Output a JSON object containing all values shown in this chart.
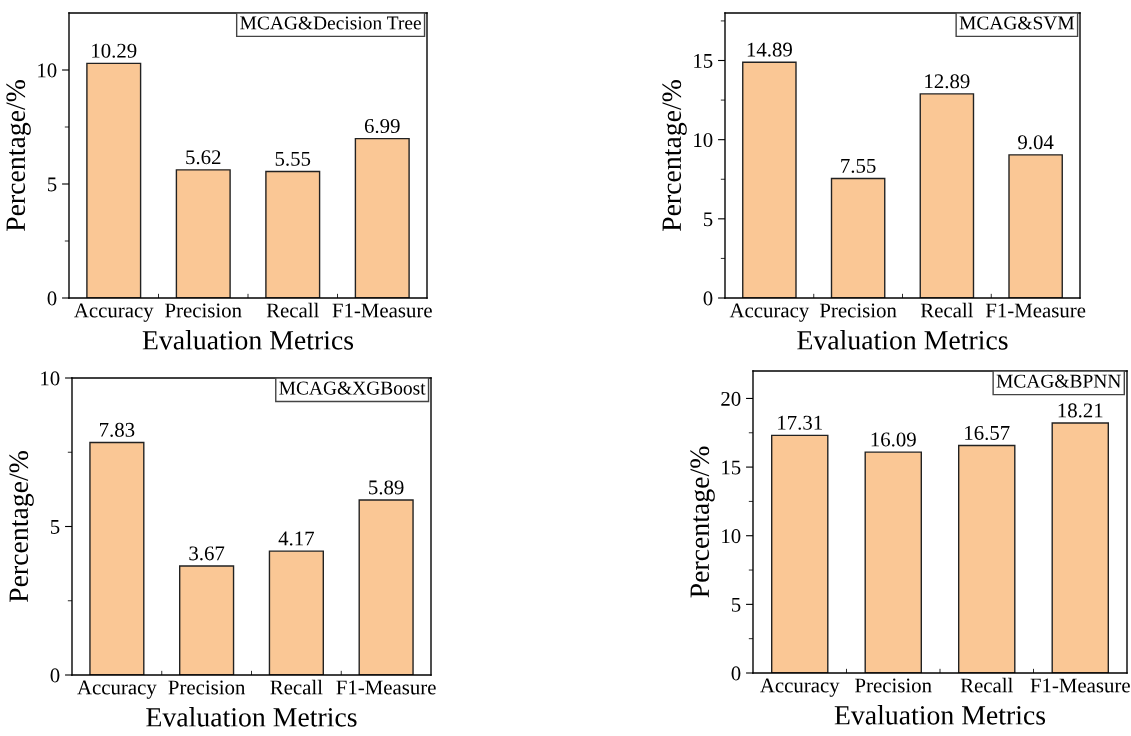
{
  "chart_data": [
    {
      "type": "bar",
      "title": "MCAG&Decision Tree",
      "xlabel": "Evaluation Metrics",
      "ylabel": "Percentage/%",
      "categories": [
        "Accuracy",
        "Precision",
        "Recall",
        "F1-Measure"
      ],
      "values": [
        10.29,
        5.62,
        5.55,
        6.99
      ],
      "color": "#fac795",
      "ylim": [
        0,
        12.5
      ],
      "yticks": [
        0,
        5,
        10
      ],
      "data_labels": true,
      "grid": false,
      "legend": false
    },
    {
      "type": "bar",
      "title": "MCAG&SVM",
      "xlabel": "Evaluation Metrics",
      "ylabel": "Percentage/%",
      "categories": [
        "Accuracy",
        "Precision",
        "Recall",
        "F1-Measure"
      ],
      "values": [
        14.89,
        7.55,
        12.89,
        9.04
      ],
      "color": "#fac795",
      "ylim": [
        0,
        18
      ],
      "yticks": [
        0,
        5,
        10,
        15
      ],
      "data_labels": true,
      "grid": false,
      "legend": false
    },
    {
      "type": "bar",
      "title": "MCAG&XGBoost",
      "xlabel": "Evaluation Metrics",
      "ylabel": "Percentage/%",
      "categories": [
        "Accuracy",
        "Precision",
        "Recall",
        "F1-Measure"
      ],
      "values": [
        7.83,
        3.67,
        4.17,
        5.89
      ],
      "color": "#fac795",
      "ylim": [
        0,
        10
      ],
      "yticks": [
        0,
        5,
        10
      ],
      "data_labels": true,
      "grid": false,
      "legend": false
    },
    {
      "type": "bar",
      "title": "MCAG&BPNN",
      "xlabel": "Evaluation Metrics",
      "ylabel": "Percentage/%",
      "categories": [
        "Accuracy",
        "Precision",
        "Recall",
        "F1-Measure"
      ],
      "values": [
        17.31,
        16.09,
        16.57,
        18.21
      ],
      "color": "#fac795",
      "ylim": [
        0,
        22
      ],
      "yticks": [
        0,
        5,
        10,
        15,
        20
      ],
      "data_labels": true,
      "grid": false,
      "legend": false
    }
  ]
}
